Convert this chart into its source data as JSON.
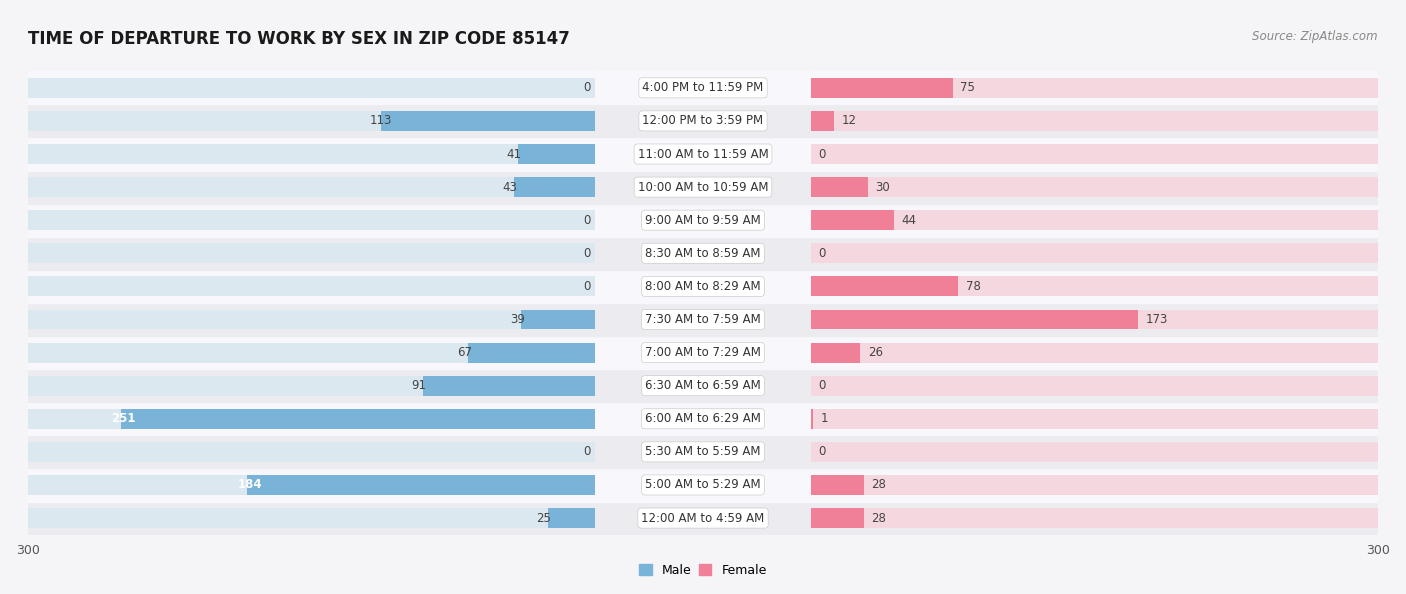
{
  "title": "TIME OF DEPARTURE TO WORK BY SEX IN ZIP CODE 85147",
  "source": "Source: ZipAtlas.com",
  "categories": [
    "12:00 AM to 4:59 AM",
    "5:00 AM to 5:29 AM",
    "5:30 AM to 5:59 AM",
    "6:00 AM to 6:29 AM",
    "6:30 AM to 6:59 AM",
    "7:00 AM to 7:29 AM",
    "7:30 AM to 7:59 AM",
    "8:00 AM to 8:29 AM",
    "8:30 AM to 8:59 AM",
    "9:00 AM to 9:59 AM",
    "10:00 AM to 10:59 AM",
    "11:00 AM to 11:59 AM",
    "12:00 PM to 3:59 PM",
    "4:00 PM to 11:59 PM"
  ],
  "male": [
    25,
    184,
    0,
    251,
    91,
    67,
    39,
    0,
    0,
    0,
    43,
    41,
    113,
    0
  ],
  "female": [
    28,
    28,
    0,
    1,
    0,
    26,
    173,
    78,
    0,
    44,
    30,
    0,
    12,
    75
  ],
  "male_color": "#7ab3d8",
  "female_color": "#f08098",
  "male_bar_bg": "#dce8f0",
  "female_bar_bg": "#f5d8df",
  "row_bg_odd": "#ebebf0",
  "row_bg_even": "#f8f8fc",
  "xlim": 300,
  "bar_height": 0.6,
  "legend_male": "Male",
  "legend_female": "Female",
  "title_fontsize": 12,
  "label_fontsize": 8.5,
  "cat_fontsize": 8.5,
  "tick_fontsize": 9,
  "source_fontsize": 8.5,
  "fig_bg": "#f5f5f8"
}
